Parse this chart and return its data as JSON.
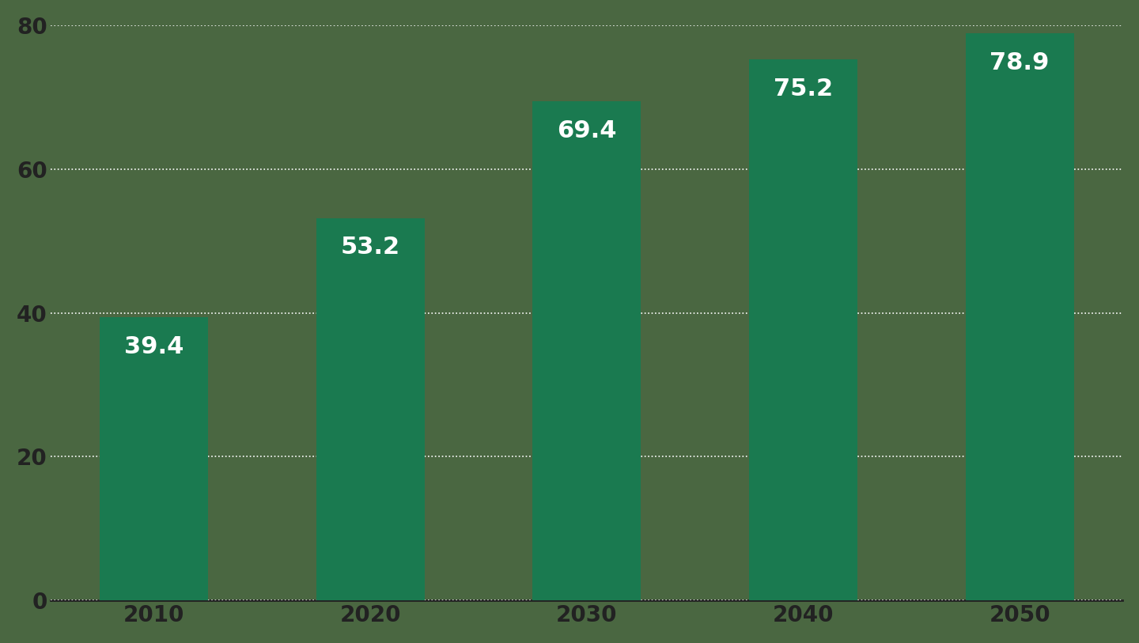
{
  "categories": [
    "2010",
    "2020",
    "2030",
    "2040",
    "2050"
  ],
  "values": [
    39.4,
    53.2,
    69.4,
    75.2,
    78.9
  ],
  "bar_color": "#1a7a50",
  "background_color": "#4a6741",
  "label_color": "#ffffff",
  "tick_label_color": "#222222",
  "gridline_color": "#ffffff",
  "ylim": [
    0,
    80
  ],
  "yticks": [
    0,
    20,
    40,
    60,
    80
  ],
  "bar_width": 0.5,
  "label_fontsize": 22,
  "tick_fontsize": 20,
  "grid_linestyle": ":",
  "grid_linewidth": 1.2
}
